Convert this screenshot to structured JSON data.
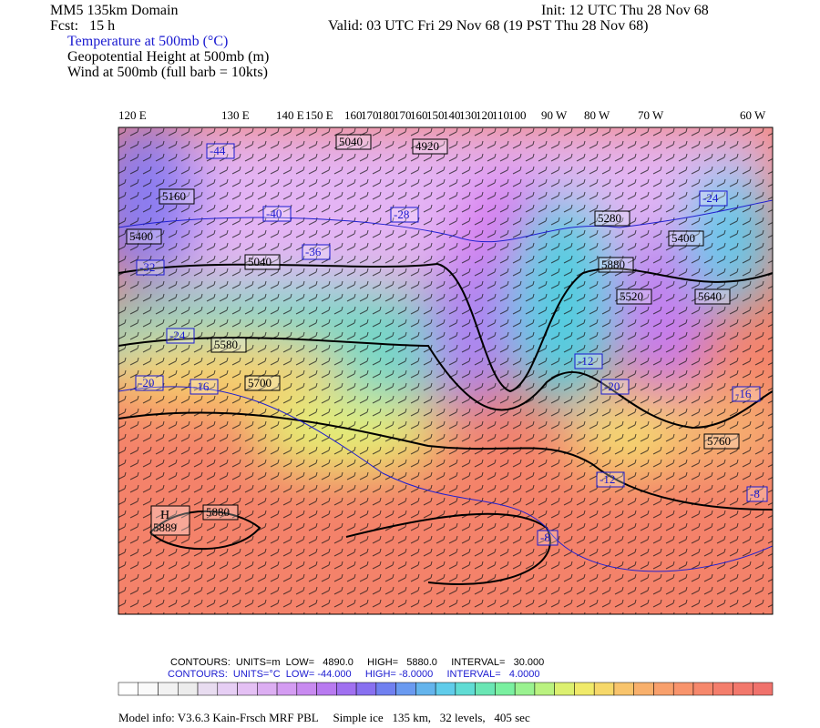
{
  "header": {
    "domain": "MM5 135km Domain",
    "forecast": "Fcst:   15 h",
    "init": "Init: 12 UTC Thu 28 Nov 68",
    "valid": "Valid: 03 UTC Fri 29 Nov 68 (19 PST Thu 28 Nov 68)",
    "fields": [
      "Temperature at 500mb (°C)",
      "Geopotential Height at 500mb (m)",
      "Wind at 500mb (full barb = 10kts)"
    ]
  },
  "longitudes": [
    "120 E",
    "130 E",
    "140 E",
    "150 E",
    "160",
    "170",
    "180",
    "170",
    "160",
    "150",
    "140",
    "130",
    "120",
    "110",
    "100",
    "90 W",
    "80 W",
    "70 W",
    "60 W"
  ],
  "height_labels": [
    "5040",
    "4920",
    "5160",
    "5040",
    "5400",
    "5580",
    "5700",
    "5880",
    "5280",
    "5400",
    "5520",
    "5640",
    "5760",
    "5880"
  ],
  "temperature_labels": [
    "-44",
    "-40",
    "-36",
    "-32",
    "-28",
    "-24",
    "-20",
    "-16",
    "-12",
    "-8",
    "-8",
    "-12",
    "-16",
    "-20",
    "-24"
  ],
  "high": {
    "letter": "H",
    "value": "5889"
  },
  "footer": {
    "height_contours": "CONTOURS:  UNITS=m  LOW=   4890.0     HIGH=   5880.0     INTERVAL=   30.000",
    "temperature_contours": "CONTOURS:  UNITS=°C  LOW= -44.000     HIGH= -8.0000     INTERVAL=   4.0000",
    "model_info": "Model info: V3.6.3 Kain-Frsch MRF PBL     Simple ice   135 km,   32 levels,   405 sec"
  }
}
